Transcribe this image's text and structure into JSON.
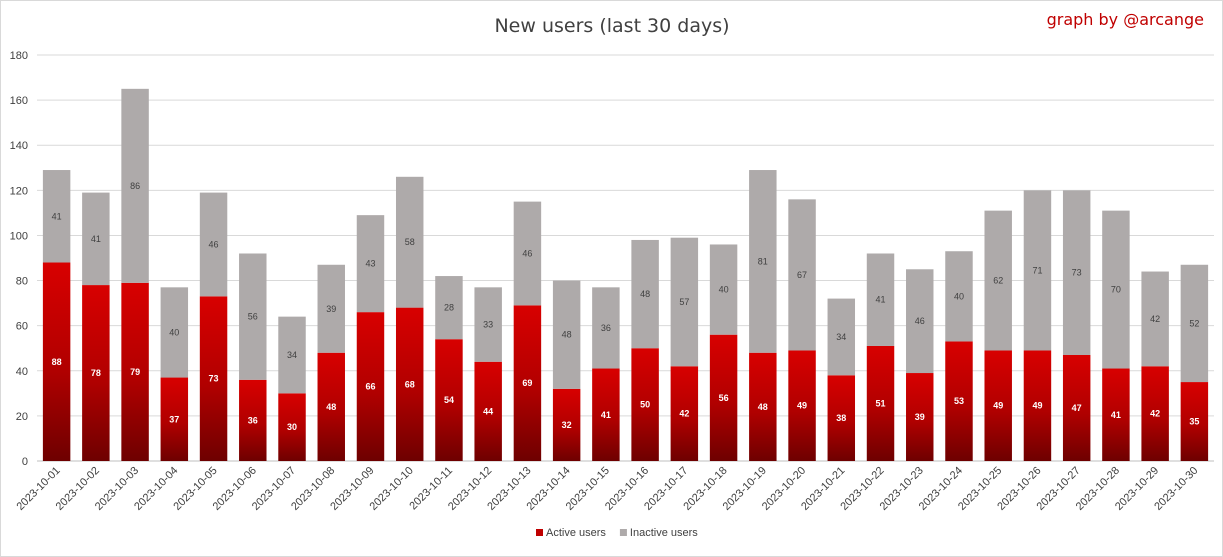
{
  "chart_data": {
    "type": "bar",
    "stacked": true,
    "title": "New users (last 30 days)",
    "credit": "graph by @arcange",
    "xlabel": "",
    "ylabel": "",
    "ylim": [
      0,
      180
    ],
    "yticks": [
      0,
      20,
      40,
      60,
      80,
      100,
      120,
      140,
      160,
      180
    ],
    "grid": true,
    "legend_position": "bottom",
    "categories": [
      "2023-10-01",
      "2023-10-02",
      "2023-10-03",
      "2023-10-04",
      "2023-10-05",
      "2023-10-06",
      "2023-10-07",
      "2023-10-08",
      "2023-10-09",
      "2023-10-10",
      "2023-10-11",
      "2023-10-12",
      "2023-10-13",
      "2023-10-14",
      "2023-10-15",
      "2023-10-16",
      "2023-10-17",
      "2023-10-18",
      "2023-10-19",
      "2023-10-20",
      "2023-10-21",
      "2023-10-22",
      "2023-10-23",
      "2023-10-24",
      "2023-10-25",
      "2023-10-26",
      "2023-10-27",
      "2023-10-28",
      "2023-10-29",
      "2023-10-30"
    ],
    "series": [
      {
        "name": "Active users",
        "color": "#c00000",
        "values": [
          88,
          78,
          79,
          37,
          73,
          36,
          30,
          48,
          66,
          68,
          54,
          44,
          69,
          32,
          41,
          50,
          42,
          56,
          48,
          49,
          38,
          51,
          39,
          53,
          49,
          49,
          47,
          41,
          42,
          35
        ]
      },
      {
        "name": "Inactive users",
        "color": "#aeaaaa",
        "values": [
          41,
          41,
          86,
          40,
          46,
          56,
          34,
          39,
          43,
          58,
          28,
          33,
          46,
          48,
          36,
          48,
          57,
          40,
          81,
          67,
          34,
          41,
          46,
          40,
          62,
          71,
          73,
          70,
          42,
          52
        ]
      }
    ]
  }
}
